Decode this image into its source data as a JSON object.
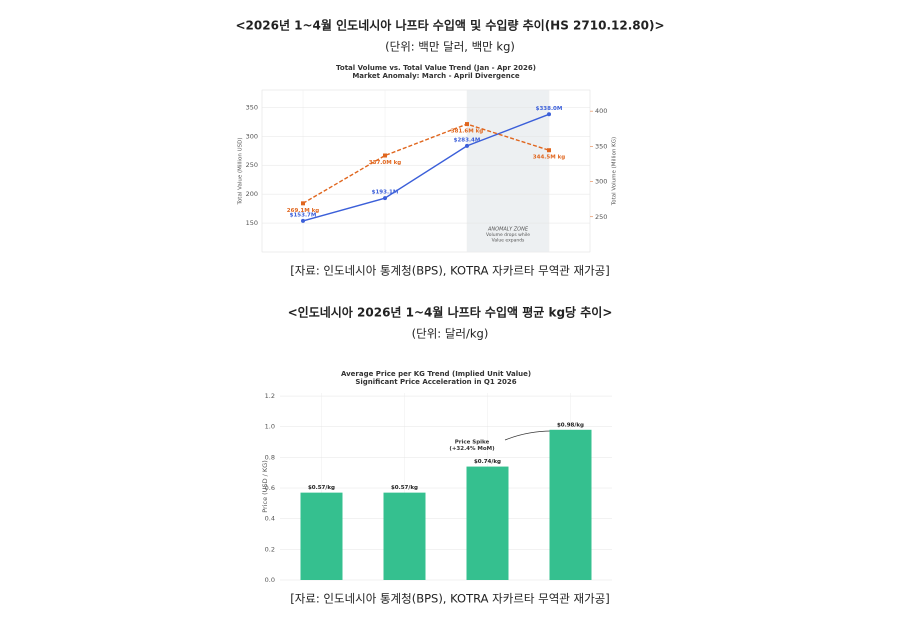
{
  "sections": [
    {
      "title": "<2026년 1~4월 인도네시아 나프타 수입액 및 수입량 추이(HS 2710.12.80)>",
      "unit": "(단위: 백만 달러, 백만 kg)",
      "source": "[자료: 인도네시아 통계청(BPS), KOTRA 자카르타 무역관 재가공]"
    },
    {
      "title": "<인도네시아 2026년 1~4월 나프타 수입액 평균 kg당 추이>",
      "unit": "(단위: 달러/kg)",
      "source": "[자료: 인도네시아 통계청(BPS), KOTRA 자카르타 무역관 재가공]"
    }
  ],
  "chart_data": [
    {
      "type": "line",
      "title": "Total Volume vs. Total Value Trend (Jan - Apr 2026)",
      "subtitle": "Market Anomaly: March - April Divergence",
      "ylabel": "Total Value (Million USD)",
      "y2label": "Total Volume (Million KG)",
      "categories": [
        null,
        null,
        null,
        null
      ],
      "series": [
        {
          "color": "#3b5fd9",
          "axis": "y",
          "values": [
            153.7,
            193.1,
            283.4,
            338.0
          ],
          "value_labels": [
            "$153.7M",
            "$193.1M",
            "$283.4M",
            "$338.0M"
          ]
        },
        {
          "color": "#e0661e",
          "axis": "y2",
          "values": [
            269.1,
            337.0,
            381.6,
            344.5
          ],
          "value_labels": [
            "269.1M kg",
            "337.0M kg",
            "381.6M kg",
            "344.5M kg"
          ]
        }
      ],
      "ylim": [
        100,
        380
      ],
      "yticks": [
        150,
        200,
        250,
        300,
        350
      ],
      "y2lim": [
        200,
        430
      ],
      "y2ticks": [
        250,
        300,
        350,
        400
      ],
      "annotation": [
        "ANOMALY ZONE",
        "Volume drops while",
        "Value expands"
      ],
      "grid": true
    },
    {
      "type": "bar",
      "title": "Average Price per KG Trend (Implied Unit Value)",
      "subtitle": "Significant Price Acceleration in Q1 2026",
      "ylabel": "Price (USD / KG)",
      "categories": [
        null,
        null,
        null,
        null
      ],
      "values": [
        0.57,
        0.57,
        0.74,
        0.98
      ],
      "value_labels": [
        "$0.57/kg",
        "$0.57/kg",
        "$0.74/kg",
        "$0.98/kg"
      ],
      "color": "#35c08f",
      "ylim": [
        0,
        1.22
      ],
      "yticks": [
        {
          "value": 0,
          "label": "0.0"
        },
        0.2,
        0.4,
        0.6,
        0.8,
        {
          "value": 1,
          "label": "1.0"
        },
        1.2
      ],
      "annotation": [
        "Price Spike",
        "(+32.4% MoM)"
      ],
      "grid": true
    }
  ]
}
